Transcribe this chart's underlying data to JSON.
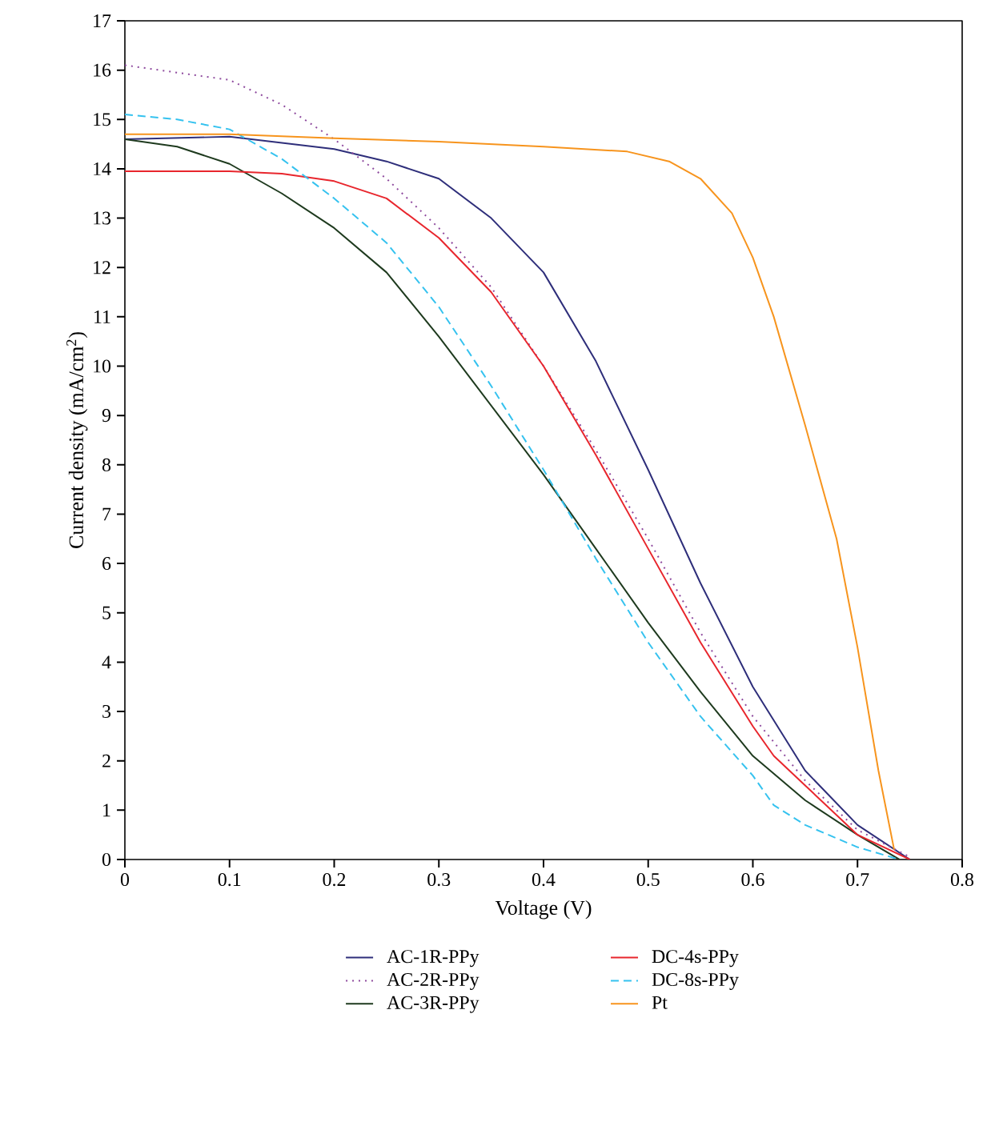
{
  "chart_data": {
    "type": "line",
    "xlabel": "Voltage (V)",
    "ylabel": "Current density (mA/cm$^{2}$)",
    "xlim": [
      0,
      0.8
    ],
    "ylim": [
      0,
      17
    ],
    "xticks": [
      0,
      0.1,
      0.2,
      0.3,
      0.4,
      0.5,
      0.6,
      0.7,
      0.8
    ],
    "yticks": [
      0,
      1,
      2,
      3,
      4,
      5,
      6,
      7,
      8,
      9,
      10,
      11,
      12,
      13,
      14,
      15,
      16,
      17
    ],
    "legend": "bottom",
    "marker": "none",
    "series": [
      {
        "name": "AC-1R-PPy",
        "color": "#2e2e7a",
        "line_style": "solid",
        "x": [
          0,
          0.1,
          0.2,
          0.25,
          0.3,
          0.35,
          0.4,
          0.45,
          0.5,
          0.55,
          0.6,
          0.65,
          0.7,
          0.75
        ],
        "values": [
          14.6,
          14.65,
          14.4,
          14.15,
          13.8,
          13.0,
          11.9,
          10.1,
          7.9,
          5.6,
          3.5,
          1.8,
          0.7,
          0
        ]
      },
      {
        "name": "AC-2R-PPy",
        "color": "#8e4a9e",
        "line_style": "dotted",
        "x": [
          0,
          0.1,
          0.15,
          0.2,
          0.25,
          0.3,
          0.35,
          0.4,
          0.45,
          0.5,
          0.55,
          0.6,
          0.65,
          0.7,
          0.75
        ],
        "values": [
          16.1,
          15.8,
          15.3,
          14.6,
          13.8,
          12.8,
          11.6,
          10.0,
          8.3,
          6.5,
          4.6,
          2.9,
          1.6,
          0.6,
          0.05
        ]
      },
      {
        "name": "AC-3R-PPy",
        "color": "#1e3a1e",
        "line_style": "solid",
        "x": [
          0,
          0.05,
          0.1,
          0.15,
          0.2,
          0.25,
          0.3,
          0.35,
          0.4,
          0.45,
          0.5,
          0.55,
          0.6,
          0.65,
          0.7,
          0.74
        ],
        "values": [
          14.6,
          14.45,
          14.1,
          13.5,
          12.8,
          11.9,
          10.6,
          9.2,
          7.8,
          6.3,
          4.8,
          3.4,
          2.1,
          1.2,
          0.5,
          0
        ]
      },
      {
        "name": "DC-4s-PPy",
        "color": "#e8262d",
        "line_style": "solid",
        "x": [
          0,
          0.1,
          0.15,
          0.2,
          0.25,
          0.3,
          0.35,
          0.4,
          0.45,
          0.5,
          0.55,
          0.6,
          0.62,
          0.65,
          0.7,
          0.75
        ],
        "values": [
          13.95,
          13.95,
          13.9,
          13.75,
          13.4,
          12.6,
          11.5,
          10.0,
          8.2,
          6.3,
          4.4,
          2.7,
          2.1,
          1.5,
          0.5,
          0
        ]
      },
      {
        "name": "DC-8s-PPy",
        "color": "#35c2ef",
        "line_style": "dashed",
        "x": [
          0,
          0.05,
          0.1,
          0.15,
          0.2,
          0.25,
          0.3,
          0.35,
          0.4,
          0.45,
          0.5,
          0.55,
          0.6,
          0.62,
          0.65,
          0.7,
          0.74
        ],
        "values": [
          15.1,
          15.0,
          14.8,
          14.2,
          13.4,
          12.5,
          11.2,
          9.6,
          7.9,
          6.1,
          4.4,
          2.9,
          1.7,
          1.1,
          0.7,
          0.25,
          0
        ]
      },
      {
        "name": "Pt",
        "color": "#f7941d",
        "line_style": "solid",
        "x": [
          0,
          0.1,
          0.2,
          0.3,
          0.4,
          0.48,
          0.52,
          0.55,
          0.58,
          0.6,
          0.62,
          0.65,
          0.68,
          0.7,
          0.72,
          0.735
        ],
        "values": [
          14.7,
          14.7,
          14.62,
          14.55,
          14.45,
          14.35,
          14.15,
          13.8,
          13.1,
          12.2,
          11.0,
          8.8,
          6.5,
          4.3,
          1.8,
          0.2
        ]
      }
    ]
  }
}
